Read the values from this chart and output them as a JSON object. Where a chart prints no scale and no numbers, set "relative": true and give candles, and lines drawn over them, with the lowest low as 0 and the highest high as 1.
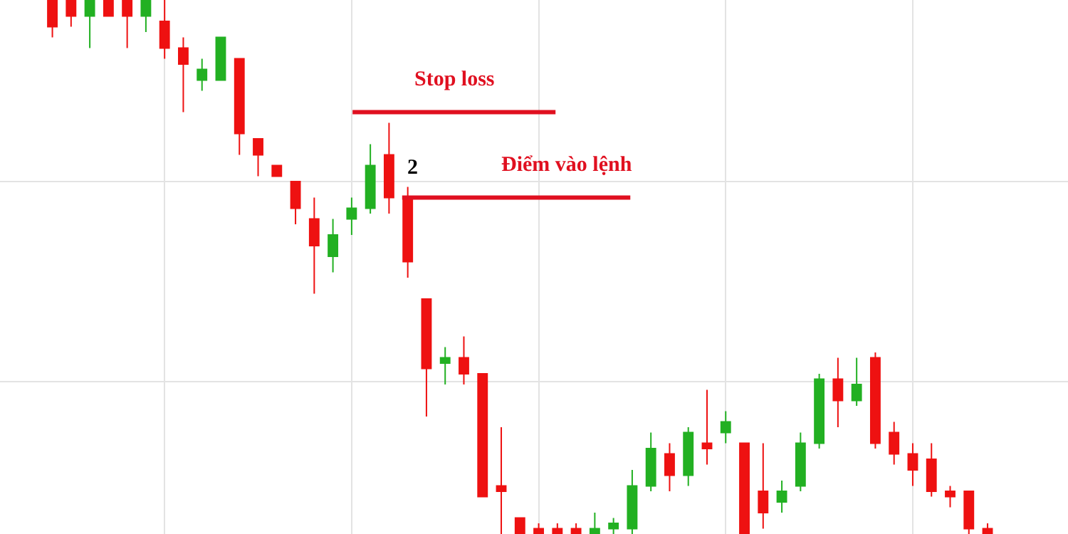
{
  "chart_data": {
    "type": "candlestick",
    "relative": true,
    "grid": true,
    "categories": [
      null,
      null,
      null,
      null,
      null,
      null,
      null,
      null,
      null,
      null,
      null,
      null,
      null,
      null,
      null,
      null,
      null,
      null,
      null,
      null,
      null,
      null,
      null,
      null,
      null,
      null,
      null,
      null,
      null,
      null,
      null,
      null,
      null,
      null,
      null,
      null,
      null,
      null,
      null,
      null,
      null,
      null,
      null,
      null,
      null,
      null,
      null,
      null,
      null,
      null,
      null
    ],
    "ohlc": [
      [
        1.0,
        1.0,
        0.93,
        0.95
      ],
      [
        1.0,
        1.0,
        0.95,
        0.97
      ],
      [
        0.97,
        1.0,
        0.91,
        1.0
      ],
      [
        1.0,
        1.0,
        0.97,
        0.97
      ],
      [
        1.0,
        1.0,
        0.91,
        0.97
      ],
      [
        0.97,
        1.0,
        0.94,
        1.0
      ],
      [
        0.96,
        1.0,
        0.89,
        0.91
      ],
      [
        0.91,
        0.93,
        0.79,
        0.88
      ],
      [
        0.85,
        0.89,
        0.83,
        0.87
      ],
      [
        0.85,
        0.93,
        0.85,
        0.93
      ],
      [
        0.89,
        0.89,
        0.71,
        0.75
      ],
      [
        0.74,
        0.74,
        0.67,
        0.71
      ],
      [
        0.69,
        0.69,
        0.67,
        0.67
      ],
      [
        0.66,
        0.66,
        0.58,
        0.61
      ],
      [
        0.59,
        0.63,
        0.45,
        0.54
      ],
      [
        0.52,
        0.59,
        0.49,
        0.56
      ],
      [
        0.59,
        0.63,
        0.56,
        0.61
      ],
      [
        0.61,
        0.73,
        0.6,
        0.69
      ],
      [
        0.71,
        0.77,
        0.6,
        0.63
      ],
      [
        0.63,
        0.65,
        0.48,
        0.51
      ],
      [
        0.44,
        0.44,
        0.22,
        0.31
      ],
      [
        0.32,
        0.35,
        0.28,
        0.33
      ],
      [
        0.33,
        0.37,
        0.28,
        0.3
      ],
      [
        0.3,
        0.3,
        0.07,
        0.07
      ],
      [
        0.09,
        0.2,
        0.0,
        0.08
      ],
      [
        0.03,
        0.03,
        0.0,
        0.0
      ],
      [
        0.01,
        0.02,
        0.0,
        0.0
      ],
      [
        0.01,
        0.02,
        0.0,
        0.0
      ],
      [
        0.01,
        0.02,
        0.0,
        0.0
      ],
      [
        0.0,
        0.04,
        0.0,
        0.01
      ],
      [
        0.01,
        0.03,
        0.0,
        0.02
      ],
      [
        0.01,
        0.12,
        0.0,
        0.09
      ],
      [
        0.09,
        0.19,
        0.08,
        0.16
      ],
      [
        0.15,
        0.17,
        0.08,
        0.11
      ],
      [
        0.11,
        0.2,
        0.09,
        0.19
      ],
      [
        0.17,
        0.27,
        0.13,
        0.16
      ],
      [
        0.19,
        0.23,
        0.17,
        0.21
      ],
      [
        0.17,
        0.17,
        0.0,
        0.0
      ],
      [
        0.08,
        0.17,
        0.01,
        0.04
      ],
      [
        0.06,
        0.1,
        0.04,
        0.08
      ],
      [
        0.09,
        0.19,
        0.08,
        0.17
      ],
      [
        0.17,
        0.3,
        0.16,
        0.29
      ],
      [
        0.29,
        0.33,
        0.2,
        0.25
      ],
      [
        0.25,
        0.33,
        0.24,
        0.28
      ],
      [
        0.33,
        0.34,
        0.16,
        0.17
      ],
      [
        0.19,
        0.21,
        0.13,
        0.15
      ],
      [
        0.15,
        0.17,
        0.09,
        0.12
      ],
      [
        0.14,
        0.17,
        0.07,
        0.08
      ],
      [
        0.08,
        0.09,
        0.05,
        0.07
      ],
      [
        0.08,
        0.08,
        0.0,
        0.01
      ],
      [
        0.01,
        0.02,
        0.0,
        0.0
      ]
    ],
    "colors": [
      "#ee1111",
      "#ee1111",
      "#22b022",
      "#ee1111",
      "#ee1111",
      "#22b022",
      "#ee1111",
      "#ee1111",
      "#22b022",
      "#22b022",
      "#ee1111",
      "#ee1111",
      "#ee1111",
      "#ee1111",
      "#ee1111",
      "#22b022",
      "#22b022",
      "#22b022",
      "#ee1111",
      "#ee1111",
      "#ee1111",
      "#22b022",
      "#ee1111",
      "#ee1111",
      "#ee1111",
      "#ee1111",
      "#ee1111",
      "#ee1111",
      "#ee1111",
      "#22b022",
      "#22b022",
      "#22b022",
      "#22b022",
      "#ee1111",
      "#22b022",
      "#ee1111",
      "#22b022",
      "#ee1111",
      "#ee1111",
      "#22b022",
      "#22b022",
      "#22b022",
      "#ee1111",
      "#22b022",
      "#ee1111",
      "#ee1111",
      "#ee1111",
      "#ee1111",
      "#ee1111",
      "#ee1111",
      "#ee1111"
    ],
    "ref_lines": [
      {
        "axis": "y",
        "value": 0.79,
        "label": "Stop loss",
        "color": "#e01020"
      },
      {
        "axis": "y",
        "value": 0.63,
        "label": "Điểm vào lệnh",
        "color": "#e01020"
      }
    ],
    "annotations": [
      "2"
    ]
  }
}
